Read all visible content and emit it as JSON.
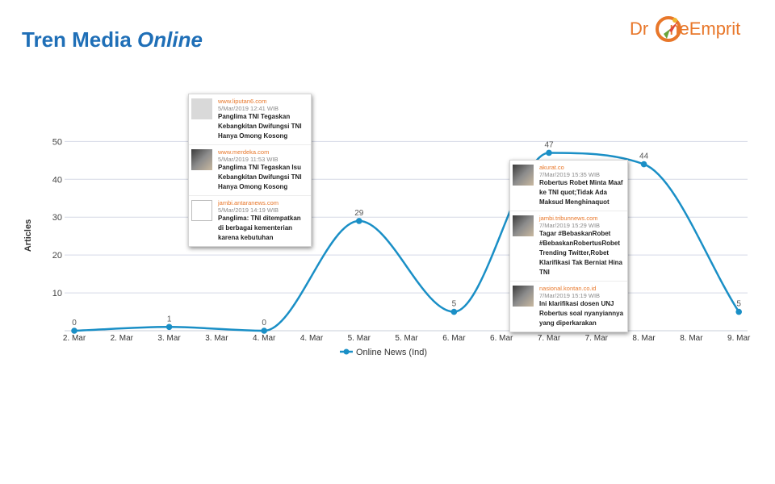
{
  "header": {
    "title_plain": "Tren Media ",
    "title_italic": "Online"
  },
  "logo": {
    "text_before": "Dr",
    "text_after": "neEmprit",
    "color": "#e8772a"
  },
  "chart_data": {
    "type": "line",
    "categories": [
      "2. Mar",
      "2. Mar",
      "3. Mar",
      "3. Mar",
      "4. Mar",
      "4. Mar",
      "5. Mar",
      "5. Mar",
      "6. Mar",
      "6. Mar",
      "7. Mar",
      "7. Mar",
      "8. Mar",
      "8. Mar",
      "9. Mar"
    ],
    "points": [
      {
        "x": "2. Mar",
        "y": 0,
        "label": "0"
      },
      {
        "x": "3. Mar",
        "y": 1,
        "label": "1"
      },
      {
        "x": "4. Mar",
        "y": 0,
        "label": "0"
      },
      {
        "x": "5. Mar",
        "y": 29,
        "label": "29"
      },
      {
        "x": "6. Mar",
        "y": 5,
        "label": "5"
      },
      {
        "x": "7. Mar",
        "y": 47,
        "label": "47"
      },
      {
        "x": "8. Mar",
        "y": 44,
        "label": "44"
      },
      {
        "x": "9. Mar",
        "y": 5,
        "label": "5"
      }
    ],
    "series": [
      {
        "name": "Online News (Ind)",
        "color": "#1a8fc6"
      }
    ],
    "ylabel": "Articles",
    "yticks": [
      10,
      20,
      30,
      40,
      50
    ],
    "ylim": [
      0,
      52
    ],
    "grid": true,
    "legend": "bottom"
  },
  "tooltips": [
    {
      "items": [
        {
          "source": "www.liputan6.com",
          "date": "5/Mar/2019 12:41 WIB",
          "title": "Panglima TNI Tegaskan Kebangkitan Dwifungsi TNI Hanya Omong Kosong",
          "thumb": "placeholder"
        },
        {
          "source": "www.merdeka.com",
          "date": "5/Mar/2019 11:53 WIB",
          "title": "Panglima TNI Tegaskan Isu Kebangkitan Dwifungsi TNI Hanya Omong Kosong",
          "thumb": "photo"
        },
        {
          "source": "jambi.antaranews.com",
          "date": "5/Mar/2019 14:19 WIB",
          "title": "Panglima: TNI ditempatkan di berbagai kementerian karena kebutuhan",
          "thumb": "broken"
        }
      ]
    },
    {
      "items": [
        {
          "source": "akurat.co",
          "date": "7/Mar/2019 15:35 WIB",
          "title": "Robertus Robet Minta Maaf ke TNI quot;Tidak Ada Maksud Menghinaquot",
          "thumb": "photo"
        },
        {
          "source": "jambi.tribunnews.com",
          "date": "7/Mar/2019 15:29 WIB",
          "title": "Tagar #BebaskanRobet #BebaskanRobertusRobet Trending Twitter,Robet Klarifikasi Tak Berniat Hina TNI",
          "thumb": "photo"
        },
        {
          "source": "nasional.kontan.co.id",
          "date": "7/Mar/2019 15:19 WIB",
          "title": "Ini klarifikasi dosen UNJ Robertus soal nyanyiannya yang diperkarakan",
          "thumb": "photo"
        }
      ]
    }
  ]
}
